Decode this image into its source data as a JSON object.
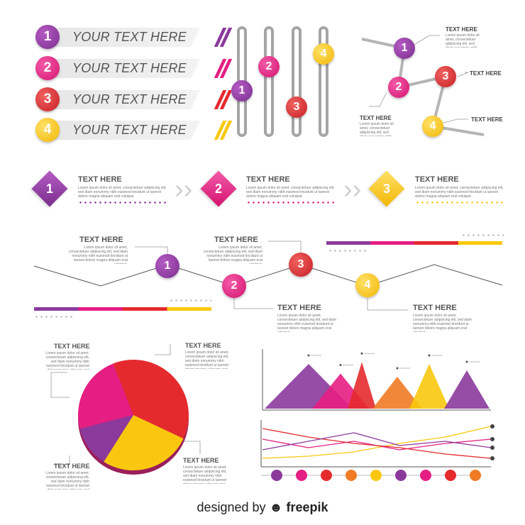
{
  "colors": {
    "purple": "#8b3a9c",
    "magenta": "#e51e83",
    "red": "#e52a2e",
    "orange": "#f07b24",
    "yellow": "#f9c80e",
    "gray": "#a5a5a5"
  },
  "banners": [
    {
      "num": "1",
      "text": "YOUR TEXT HERE"
    },
    {
      "num": "2",
      "text": "YOUR TEXT HERE"
    },
    {
      "num": "3",
      "text": "YOUR TEXT HERE"
    },
    {
      "num": "4",
      "text": "YOUR TEXT HERE"
    }
  ],
  "sliders": {
    "nums": [
      "1",
      "2",
      "3",
      "4"
    ]
  },
  "network": {
    "nums": [
      "1",
      "2",
      "3",
      "4"
    ],
    "labels": [
      "TEXT HERE",
      "TEXT HERE",
      "TEXT HERE",
      "TEXT HERE"
    ]
  },
  "steps": [
    {
      "num": "1",
      "title": "TEXT HERE",
      "body": "Lorem ipsum dolor sit amet, consectetuer adipiscing elit, sed diam nonummy nibh euismod tincidunt ut laoreet dolore magna aliquam erat volutpat."
    },
    {
      "num": "2",
      "title": "TEXT HERE",
      "body": "Lorem ipsum dolor sit amet, consectetuer adipiscing elit, sed diam nonummy nibh euismod tincidunt ut laoreet dolore magna aliquam erat volutpat."
    },
    {
      "num": "3",
      "title": "TEXT HERE",
      "body": "Lorem ipsum dolor sit amet, consectetuer adipiscing elit, sed diam nonummy nibh euismod tincidunt ut laoreet dolore magna aliquam erat volutpat."
    }
  ],
  "timeline": [
    {
      "num": "1",
      "title": "TEXT HERE",
      "body": "Lorem ipsum dolor sit amet, consectetuer adipiscing elit, sed diam nonummy nibh euismod tincidunt ut laoreet dolore magna aliquam erat volutpat."
    },
    {
      "num": "2",
      "title": "TEXT HERE",
      "body": "Lorem ipsum dolor sit amet, consectetuer adipiscing elit, sed diam nonummy nibh euismod tincidunt ut laoreet dolore magna aliquam erat volutpat."
    },
    {
      "num": "3",
      "title": "TEXT HERE",
      "body": "Lorem ipsum dolor sit amet, consectetuer adipiscing elit, sed diam nonummy nibh euismod tincidunt ut laoreet dolore magna aliquam erat volutpat."
    },
    {
      "num": "4",
      "title": "TEXT HERE",
      "body": "Lorem ipsum dolor sit amet, consectetuer adipiscing elit, sed diam nonummy nibh euismod tincidunt ut laoreet dolore magna aliquam erat volutpat."
    }
  ],
  "pie": {
    "labels": [
      "TEXT HERE",
      "TEXT HERE",
      "TEXT HERE",
      "TEXT HERE"
    ],
    "body": "Lorem ipsum dolor sit amet, consectetuer adipiscing elit, sed diam nonummy nibh euismod tincidunt ut laoreet dolore magna aliquam erat volutpat."
  },
  "chart_data": [
    {
      "type": "pie",
      "values": [
        38,
        27,
        12,
        23
      ],
      "colors": [
        "#e52a2e",
        "#f9c80e",
        "#8b3a9c",
        "#e51e83"
      ]
    },
    {
      "type": "area",
      "values": [
        0.7,
        0.55,
        0.73,
        0.5,
        0.7,
        0.6
      ],
      "colors": [
        "#8b3a9c",
        "#e51e83",
        "#e52a2e",
        "#f07b24",
        "#f9c80e",
        "#8b3a9c"
      ]
    },
    {
      "type": "line",
      "series": [
        {
          "color": "#f9c80e",
          "values": [
            0.1,
            0.15,
            0.25,
            0.45,
            0.6,
            0.85
          ]
        },
        {
          "color": "#e51e83",
          "values": [
            0.55,
            0.35,
            0.5,
            0.3,
            0.45,
            0.55
          ]
        },
        {
          "color": "#e52a2e",
          "values": [
            0.8,
            0.6,
            0.45,
            0.35,
            0.2,
            0.1
          ]
        },
        {
          "color": "#8b3a9c",
          "values": [
            0.3,
            0.5,
            0.7,
            0.4,
            0.5,
            0.35
          ]
        }
      ]
    }
  ],
  "credit": {
    "prefix": "designed by",
    "brand": "freepik"
  }
}
